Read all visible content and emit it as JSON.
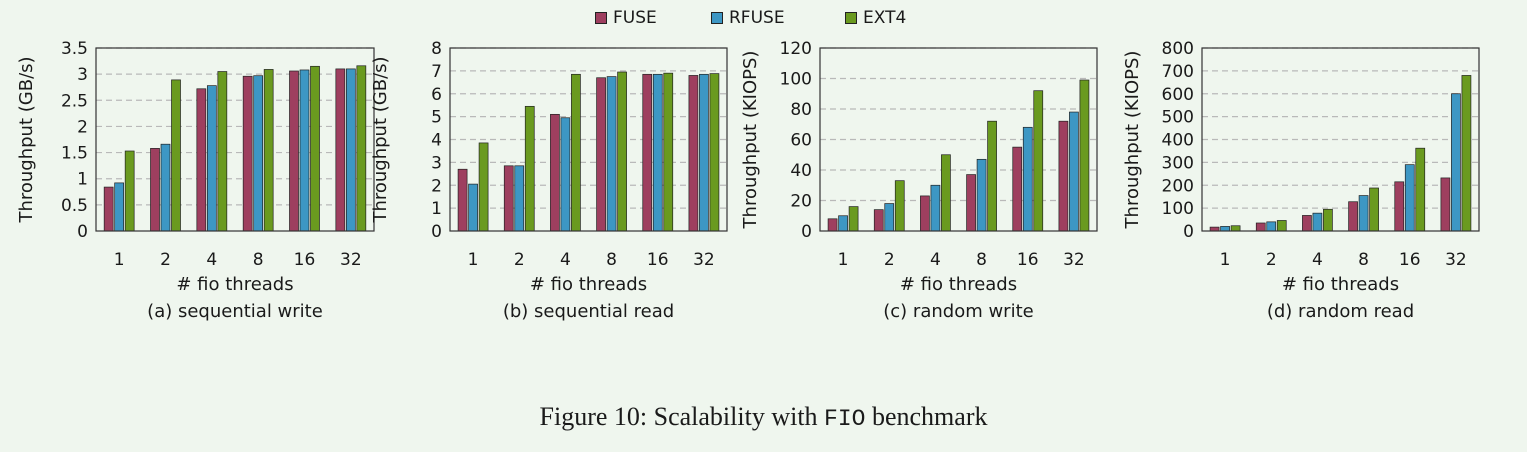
{
  "legend": [
    {
      "name": "FUSE",
      "color": "#9e3f5f"
    },
    {
      "name": "RFUSE",
      "color": "#3d97c4"
    },
    {
      "name": "EXT4",
      "color": "#6a9a1f"
    }
  ],
  "caption": {
    "prefix": "Figure 10:  Scalability with ",
    "code": "FIO",
    "suffix": " benchmark"
  },
  "chart_data": [
    {
      "type": "bar",
      "title": "(a) sequential write",
      "xlabel": "# fio threads",
      "ylabel": "Throughput (GB/s)",
      "categories": [
        "1",
        "2",
        "4",
        "8",
        "16",
        "32"
      ],
      "ylim": [
        0,
        3.5
      ],
      "yticks": [
        "0",
        "0.5",
        "1",
        "1.5",
        "2",
        "2.5",
        "3",
        "3.5"
      ],
      "grid": true,
      "series": [
        {
          "name": "FUSE",
          "values": [
            0.84,
            1.58,
            2.72,
            2.96,
            3.06,
            3.1
          ]
        },
        {
          "name": "RFUSE",
          "values": [
            0.92,
            1.66,
            2.78,
            2.97,
            3.08,
            3.1
          ]
        },
        {
          "name": "EXT4",
          "values": [
            1.53,
            2.89,
            3.05,
            3.09,
            3.15,
            3.16
          ]
        }
      ]
    },
    {
      "type": "bar",
      "title": "(b) sequential read",
      "xlabel": "# fio threads",
      "ylabel": "Throughput (GB/s)",
      "categories": [
        "1",
        "2",
        "4",
        "8",
        "16",
        "32"
      ],
      "ylim": [
        0,
        8
      ],
      "yticks": [
        "0",
        "1",
        "2",
        "3",
        "4",
        "5",
        "6",
        "7",
        "8"
      ],
      "grid": true,
      "series": [
        {
          "name": "FUSE",
          "values": [
            2.7,
            2.85,
            5.1,
            6.7,
            6.85,
            6.8
          ]
        },
        {
          "name": "RFUSE",
          "values": [
            2.05,
            2.85,
            4.95,
            6.75,
            6.85,
            6.85
          ]
        },
        {
          "name": "EXT4",
          "values": [
            3.85,
            5.45,
            6.85,
            6.95,
            6.9,
            6.88
          ]
        }
      ]
    },
    {
      "type": "bar",
      "title": "(c) random write",
      "xlabel": "# fio threads",
      "ylabel": "Throughput (KIOPS)",
      "categories": [
        "1",
        "2",
        "4",
        "8",
        "16",
        "32"
      ],
      "ylim": [
        0,
        120
      ],
      "yticks": [
        "0",
        "20",
        "40",
        "60",
        "80",
        "100",
        "120"
      ],
      "grid": true,
      "series": [
        {
          "name": "FUSE",
          "values": [
            8,
            14,
            23,
            37,
            55,
            72
          ]
        },
        {
          "name": "RFUSE",
          "values": [
            10,
            18,
            30,
            47,
            68,
            78
          ]
        },
        {
          "name": "EXT4",
          "values": [
            16,
            33,
            50,
            72,
            92,
            99
          ]
        }
      ]
    },
    {
      "type": "bar",
      "title": "(d) random read",
      "xlabel": "# fio threads",
      "ylabel": "Throughput (KIOPS)",
      "categories": [
        "1",
        "2",
        "4",
        "8",
        "16",
        "32"
      ],
      "ylim": [
        0,
        800
      ],
      "yticks": [
        "0",
        "100",
        "200",
        "300",
        "400",
        "500",
        "600",
        "700",
        "800"
      ],
      "grid": true,
      "series": [
        {
          "name": "FUSE",
          "values": [
            17,
            35,
            68,
            128,
            215,
            232
          ]
        },
        {
          "name": "RFUSE",
          "values": [
            20,
            40,
            78,
            155,
            290,
            600
          ]
        },
        {
          "name": "EXT4",
          "values": [
            23,
            46,
            95,
            188,
            362,
            680
          ]
        }
      ]
    }
  ]
}
